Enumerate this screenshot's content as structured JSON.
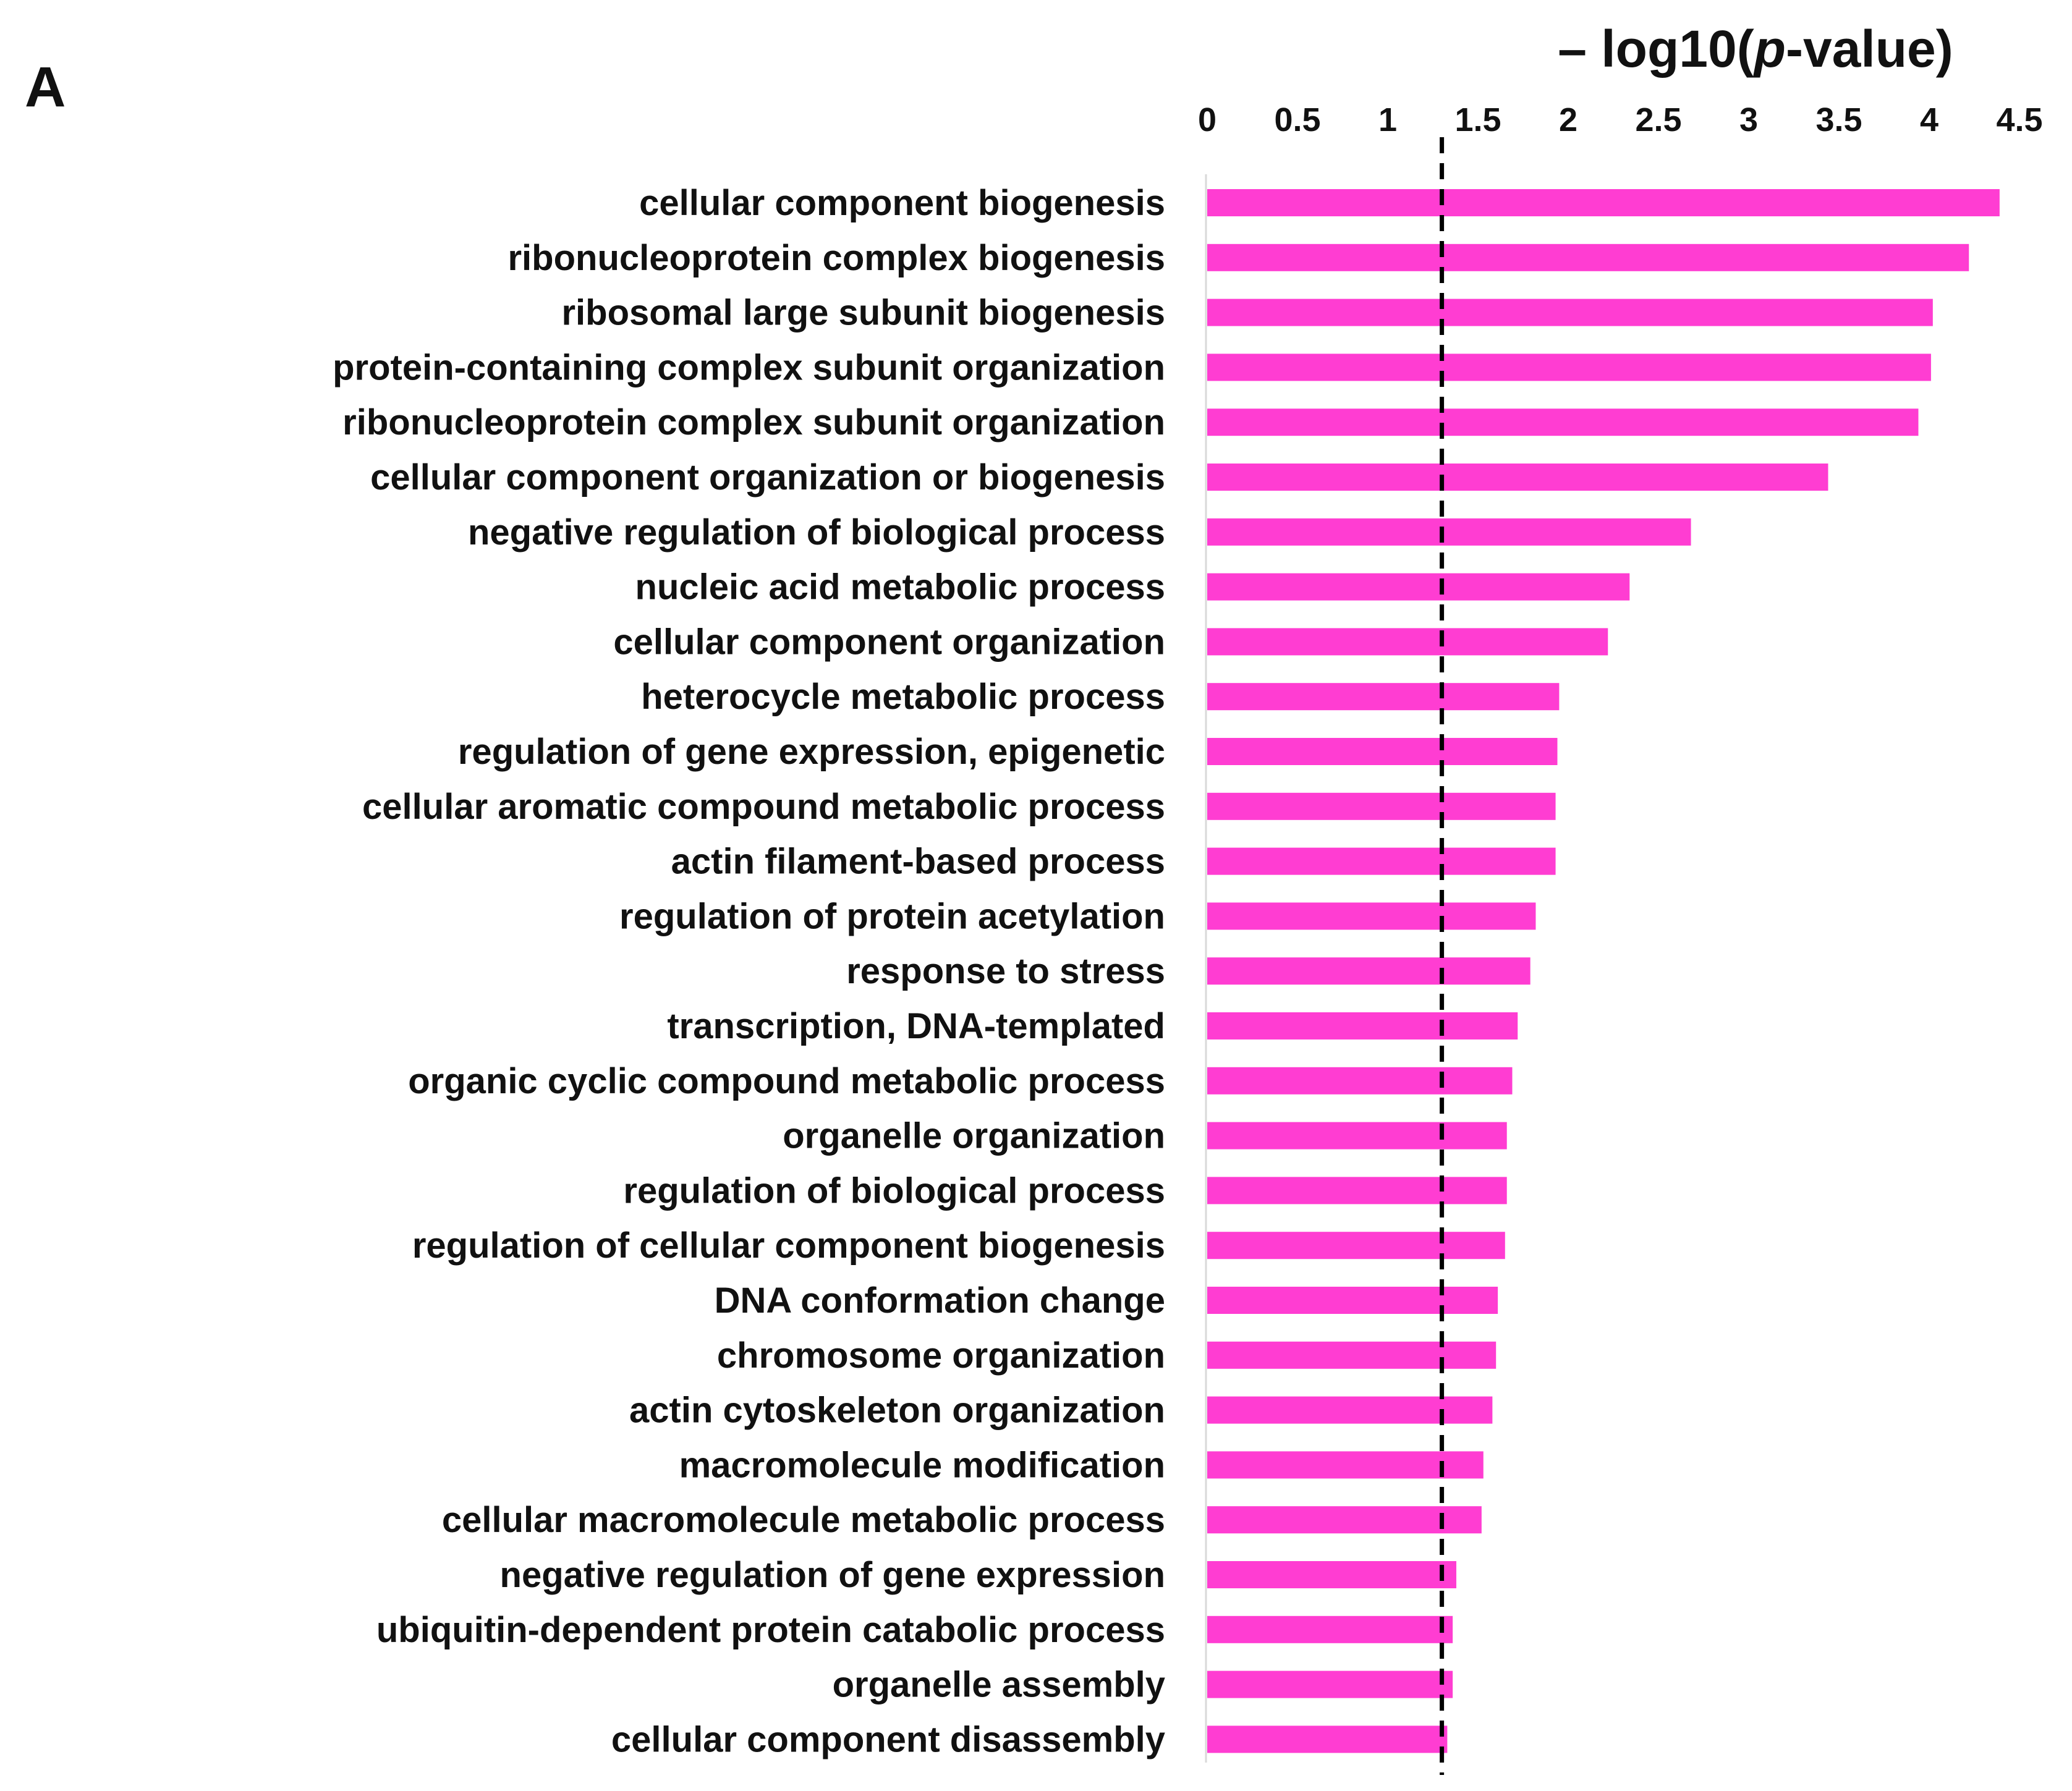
{
  "panel_label": "A",
  "chart_data": {
    "type": "bar",
    "orientation": "horizontal",
    "title": "",
    "xlabel": "– log10(p-value)",
    "xlabel_parts": {
      "prefix": "– log10(",
      "italic": "p",
      "suffix": "-value)"
    },
    "ylabel": "",
    "xlim": [
      0,
      4.5
    ],
    "xticks": [
      "0",
      "0.5",
      "1",
      "1.5",
      "2",
      "2.5",
      "3",
      "3.5",
      "4",
      "4.5"
    ],
    "xtick_values": [
      0,
      0.5,
      1,
      1.5,
      2,
      2.5,
      3,
      3.5,
      4,
      4.5
    ],
    "x_axis_position": "top",
    "threshold_line": {
      "value": 1.3,
      "style": "dashed",
      "color": "#000000"
    },
    "bar_color": "#ff3dd2",
    "grid": false,
    "legend": "none",
    "categories": [
      "cellular component biogenesis",
      "ribonucleoprotein complex biogenesis",
      "ribosomal large subunit biogenesis",
      "protein-containing complex subunit organization",
      "ribonucleoprotein complex subunit organization",
      "cellular component organization or biogenesis",
      "negative regulation of biological process",
      "nucleic acid metabolic process",
      "cellular component organization",
      "heterocycle metabolic process",
      "regulation of gene expression,  epigenetic",
      "cellular aromatic compound metabolic process",
      "actin filament-based process",
      "regulation of protein acetylation",
      "response to stress",
      "transcription,  DNA-templated",
      "organic cyclic compound metabolic process",
      "organelle organization",
      "regulation of biological process",
      "regulation of cellular component biogenesis",
      "DNA conformation change",
      "chromosome organization",
      "actin cytoskeleton organization",
      "macromolecule modification",
      "cellular macromolecule metabolic process",
      "negative regulation of gene expression",
      "ubiquitin-dependent protein catabolic process",
      "organelle assembly",
      "cellular component disassembly"
    ],
    "values": [
      4.39,
      4.22,
      4.02,
      4.01,
      3.94,
      3.44,
      2.68,
      2.34,
      2.22,
      1.95,
      1.94,
      1.93,
      1.93,
      1.82,
      1.79,
      1.72,
      1.69,
      1.66,
      1.66,
      1.65,
      1.61,
      1.6,
      1.58,
      1.53,
      1.52,
      1.38,
      1.36,
      1.36,
      1.33
    ]
  }
}
